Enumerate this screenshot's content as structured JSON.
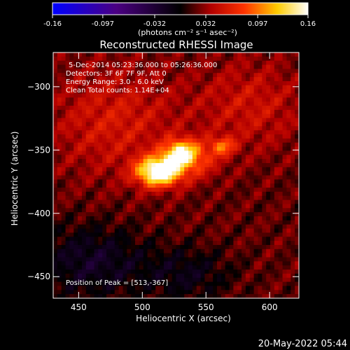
{
  "colorbar": {
    "ticks": [
      "-0.16",
      "-0.097",
      "-0.032",
      "0.032",
      "0.097",
      "0.16"
    ],
    "tick_values": [
      -0.16,
      -0.097,
      -0.032,
      0.032,
      0.097,
      0.16
    ],
    "range": [
      -0.16,
      0.16
    ],
    "unit_label": "(photons cm⁻² s⁻¹ asec⁻²)",
    "colors": [
      "#0000ff",
      "#4b0082",
      "#000000",
      "#b20000",
      "#ff3300",
      "#ffcc00",
      "#ffffff"
    ]
  },
  "chart_data": {
    "type": "heatmap",
    "title": "Reconstructed RHESSI Image",
    "xlabel": "Heliocentric X (arcsec)",
    "ylabel": "Heliocentric Y (arcsec)",
    "xlim": [
      430,
      623
    ],
    "ylim": [
      -467,
      -273
    ],
    "x_ticks": [
      450,
      500,
      550,
      600
    ],
    "y_ticks": [
      -300,
      -350,
      -400,
      -450
    ],
    "annotations": [
      "5-Dec-2014 05:23:36.000 to 05:26:36.000",
      "Detectors: 3F 6F 7F 9F, Att 0",
      "Energy Range: 3.0 - 6.0 keV",
      "Clean     Total counts: 1.14E+04",
      "Position of Peak = [513,-367]"
    ],
    "peak": {
      "x": 513,
      "y": -367,
      "value": 0.16
    },
    "sources": [
      {
        "x": 513,
        "y": -367,
        "sx": 12,
        "sy": 8,
        "amp": 0.16
      },
      {
        "x": 530,
        "y": -352,
        "sx": 9,
        "sy": 7,
        "amp": 0.1
      },
      {
        "x": 540,
        "y": -358,
        "sx": 14,
        "sy": 10,
        "amp": 0.05
      },
      {
        "x": 563,
        "y": -347,
        "sx": 7,
        "sy": 5,
        "amp": 0.06
      },
      {
        "x": 478,
        "y": -327,
        "sx": 35,
        "sy": 30,
        "amp": 0.035
      },
      {
        "x": 585,
        "y": -315,
        "sx": 30,
        "sy": 25,
        "amp": 0.03
      },
      {
        "x": 460,
        "y": -438,
        "sx": 30,
        "sy": 20,
        "amp": -0.04
      },
      {
        "x": 535,
        "y": -448,
        "sx": 25,
        "sy": 15,
        "amp": -0.03
      }
    ]
  },
  "footer": {
    "timestamp": "20-May-2022 05:44"
  }
}
